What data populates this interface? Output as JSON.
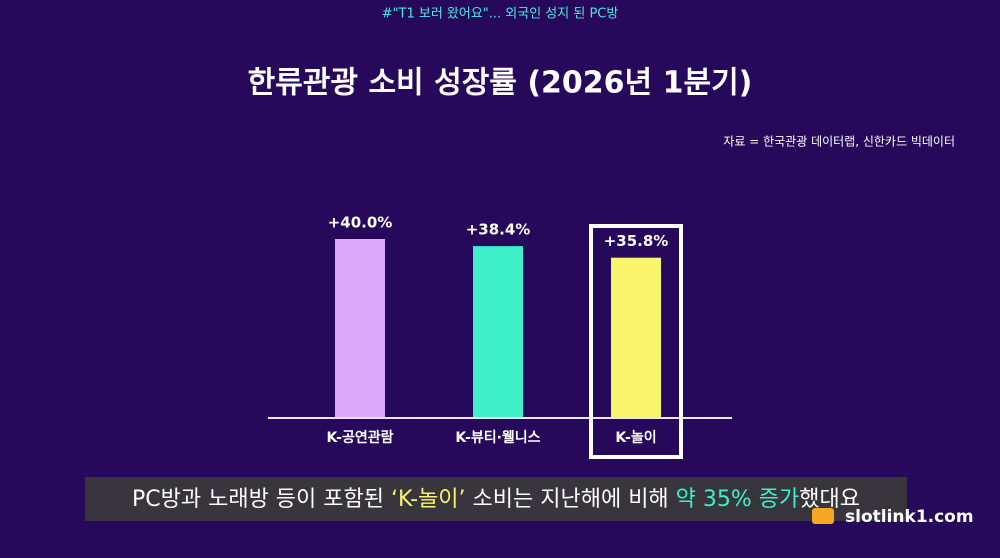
{
  "chart_data": {
    "type": "bar",
    "header": "#\"T1 보러 왔어요\"... 외국인 성지 된 PC방",
    "title": "한류관광 소비 성장률 (2026년 1분기)",
    "source": "자료 = 한국관광 데이터랩, 신한카드 빅데이터",
    "categories": [
      "K-공연관람",
      "K-뷰티·웰니스",
      "K-놀이"
    ],
    "values": [
      40.0,
      38.4,
      35.8
    ],
    "value_labels": [
      "+40.0%",
      "+38.4%",
      "+35.8%"
    ],
    "colors": [
      "#dba8f7",
      "#3ef0c9",
      "#f8f56c"
    ],
    "caption": [
      "PC방과 노래방 등이 포함된 ",
      "‘K-놀이’",
      " 소비는 지난해에 비해 ",
      "약 35% 증가",
      "했대요"
    ],
    "watermark": "slotlink1.com"
  }
}
